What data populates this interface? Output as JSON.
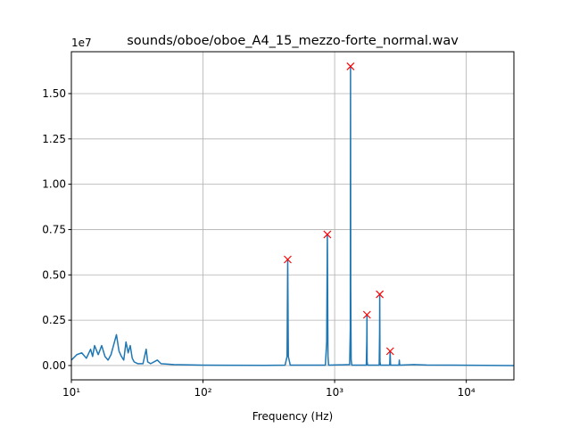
{
  "chart_data": {
    "type": "line",
    "title": "sounds/oboe/oboe_A4_15_mezzo-forte_normal.wav",
    "xlabel": "Frequency (Hz)",
    "y_offset_label": "1e7",
    "xscale": "log",
    "grid": true,
    "xlim": [
      10,
      23000
    ],
    "ylim": [
      -790000,
      17310000
    ],
    "xticks": [
      {
        "value": 10,
        "label": "10¹"
      },
      {
        "value": 100,
        "label": "10²"
      },
      {
        "value": 1000,
        "label": "10³"
      },
      {
        "value": 10000,
        "label": "10⁴"
      }
    ],
    "yticks": [
      {
        "value": 0,
        "label": "0.00"
      },
      {
        "value": 2500000,
        "label": "0.25"
      },
      {
        "value": 5000000,
        "label": "0.50"
      },
      {
        "value": 7500000,
        "label": "0.75"
      },
      {
        "value": 10000000,
        "label": "1.00"
      },
      {
        "value": 12500000,
        "label": "1.25"
      },
      {
        "value": 15000000,
        "label": "1.50"
      }
    ],
    "series": [
      {
        "color": "#1f77b4",
        "x": [
          10,
          11,
          12,
          13,
          14,
          14.5,
          15,
          16,
          17,
          18,
          19,
          20,
          22,
          23,
          24,
          25,
          26,
          27,
          28,
          29,
          30,
          32,
          35,
          37,
          38,
          40,
          45,
          48,
          60,
          100,
          300,
          420,
          435,
          440,
          445,
          460,
          850,
          870,
          880,
          890,
          900,
          1300,
          1315,
          1320,
          1325,
          1335,
          1350,
          1740,
          1755,
          1760,
          1765,
          1780,
          2180,
          2195,
          2200,
          2210,
          2230,
          2620,
          2640,
          2660,
          3080,
          3100,
          3120,
          4000,
          5000,
          23000
        ],
        "values": [
          300000,
          600000,
          700000,
          400000,
          900000,
          500000,
          1100000,
          600000,
          1100000,
          500000,
          300000,
          600000,
          1700000,
          800000,
          500000,
          300000,
          1300000,
          700000,
          1100000,
          400000,
          200000,
          100000,
          100000,
          900000,
          200000,
          100000,
          300000,
          100000,
          50000,
          20000,
          10000,
          20000,
          500000,
          5850000,
          500000,
          20000,
          20000,
          1300000,
          7230000,
          500000,
          20000,
          50000,
          2000000,
          16500000,
          4200000,
          300000,
          20000,
          20000,
          1400000,
          2800000,
          200000,
          20000,
          20000,
          1800000,
          3930000,
          200000,
          20000,
          20000,
          790000,
          20000,
          20000,
          300000,
          20000,
          50000,
          30000,
          0
        ]
      },
      {
        "color": "#ff0000",
        "marker": "x",
        "x": [
          440,
          880,
          1320,
          1760,
          2200,
          2640
        ],
        "values": [
          5850000,
          7230000,
          16500000,
          2800000,
          3930000,
          790000
        ]
      }
    ]
  }
}
